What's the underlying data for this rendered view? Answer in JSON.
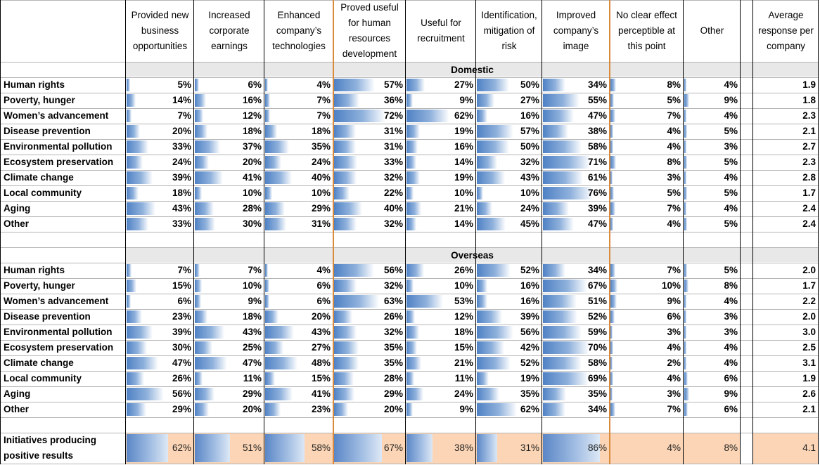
{
  "chart_data": {
    "type": "table",
    "columns": [
      "Provided new business opportunities",
      "Increased corporate earnings",
      "Enhanced company’s technologies",
      "Proved useful for human resources development",
      "Useful for recruitment",
      "Identification, mitigation of risk",
      "Improved company’s image",
      "No clear effect perceptible at this point",
      "Other",
      "Average response per company"
    ],
    "sections": [
      {
        "name": "Domestic",
        "rows": [
          {
            "label": "Human rights",
            "values": [
              "5%",
              "6%",
              "4%",
              "57%",
              "27%",
              "50%",
              "34%",
              "8%",
              "4%",
              "1.9"
            ]
          },
          {
            "label": "Poverty, hunger",
            "values": [
              "14%",
              "16%",
              "7%",
              "36%",
              "9%",
              "27%",
              "55%",
              "5%",
              "9%",
              "1.8"
            ]
          },
          {
            "label": "Women’s advancement",
            "values": [
              "7%",
              "12%",
              "7%",
              "72%",
              "62%",
              "16%",
              "47%",
              "7%",
              "4%",
              "2.3"
            ]
          },
          {
            "label": "Disease prevention",
            "values": [
              "20%",
              "18%",
              "18%",
              "31%",
              "19%",
              "57%",
              "38%",
              "4%",
              "5%",
              "2.1"
            ]
          },
          {
            "label": "Environmental pollution",
            "values": [
              "33%",
              "37%",
              "35%",
              "31%",
              "16%",
              "50%",
              "58%",
              "4%",
              "3%",
              "2.7"
            ]
          },
          {
            "label": "Ecosystem preservation",
            "values": [
              "24%",
              "20%",
              "24%",
              "33%",
              "14%",
              "32%",
              "71%",
              "8%",
              "5%",
              "2.3"
            ]
          },
          {
            "label": "Climate change",
            "values": [
              "39%",
              "41%",
              "40%",
              "32%",
              "19%",
              "43%",
              "61%",
              "3%",
              "4%",
              "2.8"
            ]
          },
          {
            "label": "Local community",
            "values": [
              "18%",
              "10%",
              "10%",
              "22%",
              "10%",
              "10%",
              "76%",
              "5%",
              "5%",
              "1.7"
            ]
          },
          {
            "label": "Aging",
            "values": [
              "43%",
              "28%",
              "29%",
              "40%",
              "21%",
              "24%",
              "39%",
              "7%",
              "4%",
              "2.4"
            ]
          },
          {
            "label": "Other",
            "values": [
              "33%",
              "30%",
              "31%",
              "32%",
              "14%",
              "45%",
              "47%",
              "4%",
              "5%",
              "2.4"
            ]
          }
        ]
      },
      {
        "name": "Overseas",
        "rows": [
          {
            "label": "Human rights",
            "values": [
              "7%",
              "7%",
              "4%",
              "56%",
              "26%",
              "52%",
              "34%",
              "7%",
              "5%",
              "2.0"
            ]
          },
          {
            "label": "Poverty, hunger",
            "values": [
              "15%",
              "10%",
              "6%",
              "32%",
              "10%",
              "16%",
              "67%",
              "10%",
              "8%",
              "1.7"
            ]
          },
          {
            "label": "Women’s advancement",
            "values": [
              "6%",
              "9%",
              "6%",
              "63%",
              "53%",
              "16%",
              "51%",
              "9%",
              "4%",
              "2.2"
            ]
          },
          {
            "label": "Disease prevention",
            "values": [
              "23%",
              "18%",
              "20%",
              "26%",
              "12%",
              "39%",
              "52%",
              "6%",
              "3%",
              "2.0"
            ]
          },
          {
            "label": "Environmental pollution",
            "values": [
              "39%",
              "43%",
              "43%",
              "32%",
              "18%",
              "56%",
              "59%",
              "3%",
              "3%",
              "3.0"
            ]
          },
          {
            "label": "Ecosystem preservation",
            "values": [
              "30%",
              "25%",
              "27%",
              "35%",
              "15%",
              "42%",
              "70%",
              "4%",
              "4%",
              "2.5"
            ]
          },
          {
            "label": "Climate change",
            "values": [
              "47%",
              "47%",
              "48%",
              "35%",
              "21%",
              "52%",
              "58%",
              "2%",
              "4%",
              "3.1"
            ]
          },
          {
            "label": "Local community",
            "values": [
              "26%",
              "11%",
              "15%",
              "28%",
              "11%",
              "19%",
              "69%",
              "4%",
              "6%",
              "1.9"
            ]
          },
          {
            "label": "Aging",
            "values": [
              "56%",
              "29%",
              "41%",
              "29%",
              "24%",
              "35%",
              "35%",
              "3%",
              "9%",
              "2.6"
            ]
          },
          {
            "label": "Other",
            "values": [
              "29%",
              "20%",
              "23%",
              "20%",
              "9%",
              "62%",
              "34%",
              "7%",
              "6%",
              "2.1"
            ]
          }
        ]
      }
    ],
    "total_row": {
      "label": "Initiatives producing positive results",
      "values": [
        "62%",
        "51%",
        "58%",
        "67%",
        "38%",
        "31%",
        "86%",
        "4%",
        "8%",
        "4.1"
      ]
    }
  },
  "colors": {
    "bar_dark": "#4f81c4",
    "bar_light": "#8fb1dc",
    "highlight": "#fbd5b5",
    "section_band": "#e8e8e8",
    "divider": "#d98a3c"
  }
}
